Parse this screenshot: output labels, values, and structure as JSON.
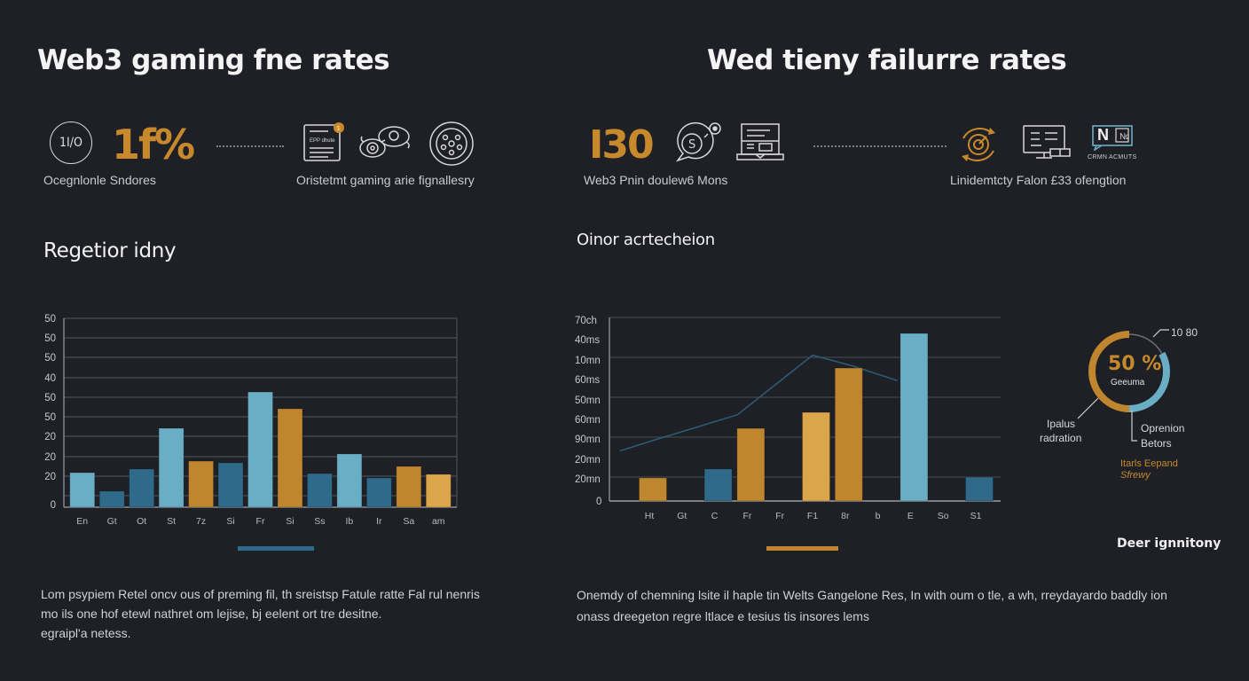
{
  "left": {
    "title": "Web3 gaming fne rates",
    "badge_text": "1I/O",
    "stat_value": "1f%",
    "stat_caption": "Ocegnlonle Sndores",
    "icons_caption": "Oristetmt gaming arie fignallesry",
    "icons": [
      "document-coin-icon",
      "gears-eye-icon",
      "circular-network-icon"
    ],
    "section_title": "Regetior idny",
    "paragraph": [
      "Lom psypiem Retel oncv ous of preming fil, th sreistsp Fatule ratte Fal rul nenris",
      "mo ils one hof etewl nathret om lejise, bj eelent ort tre desitne.",
      "egraipl'a netess."
    ]
  },
  "right": {
    "title": "Wed tieny failurre rates",
    "stat_value": "I30",
    "stat_caption": "Web3 Pnin doulew6 Mons",
    "icons_caption": "Linidemtcty Falon £33 ofengtion",
    "icons": [
      "coin-chat-icon",
      "laptop-book-icon",
      "target-cycle-icon",
      "monitor-icon",
      "news-chat-icon"
    ],
    "news_icon_text": "N",
    "news_icon_caption": "CRMN ACMUTS",
    "section_title": "Oinor acrtecheion",
    "legend_title": "Deer ignnitony",
    "paragraph": [
      "Onemdy of chemning lsite il haple tin Welts Gangelone Res, In with oum o tle, a wh, rreydayardo baddly ion",
      "onass dreegeton regre ltlace e tesius tis insores lems"
    ]
  },
  "colors": {
    "background": "#1e2026",
    "light_blue": "#6aaec6",
    "dark_blue": "#2f6a8a",
    "orange": "#c0862f",
    "light_orange": "#dba54c",
    "line": "#2d5a76",
    "grid": "#4a4d54"
  },
  "chart_data": [
    {
      "type": "bar",
      "title": "Regetior idny",
      "xlabel": "",
      "ylabel": "",
      "ylim": [
        0,
        100
      ],
      "grid": true,
      "y_tick_labels": [
        "50",
        "50",
        "50",
        "40",
        "50",
        "50",
        "20",
        "20",
        "20",
        "0"
      ],
      "categories": [
        "En",
        "Gt",
        "Ot",
        "St",
        "7z",
        "Si",
        "Fr",
        "Si",
        "Ss",
        "Ib",
        "Ir",
        "Sa",
        "am"
      ],
      "values": [
        18.3,
        8.5,
        20.2,
        41.8,
        24.4,
        23.5,
        61.0,
        52.1,
        17.8,
        28.2,
        15.5,
        21.6,
        17.4
      ],
      "bar_colors": [
        "light_blue",
        "dark_blue",
        "dark_blue",
        "light_blue",
        "orange",
        "dark_blue",
        "light_blue",
        "orange",
        "dark_blue",
        "light_blue",
        "dark_blue",
        "orange",
        "light_orange"
      ],
      "indicator_color": "dark_blue"
    },
    {
      "type": "bar",
      "title": "Oinor acrtecheion",
      "xlabel": "",
      "ylabel": "",
      "ylim": [
        0,
        70
      ],
      "grid": true,
      "y_tick_labels": [
        "70ch",
        "40ms",
        "10mn",
        "60ms",
        "50mn",
        "60mn",
        "90mn",
        "20mn",
        "20mn",
        "0"
      ],
      "categories": [
        "Ht",
        "Gt",
        "C",
        "Fr",
        "Fr",
        "F1",
        "8r",
        "b",
        "E",
        "So",
        "S1"
      ],
      "bars": [
        {
          "category_index": 0,
          "value": 8.8,
          "color": "orange"
        },
        {
          "category_index": 2,
          "value": 12.2,
          "color": "dark_blue"
        },
        {
          "category_index": 3,
          "value": 27.7,
          "color": "orange"
        },
        {
          "category_index": 5,
          "value": 33.8,
          "color": "light_orange"
        },
        {
          "category_index": 6,
          "value": 50.7,
          "color": "orange"
        },
        {
          "category_index": 8,
          "value": 63.9,
          "color": "light_blue"
        },
        {
          "category_index": 10,
          "value": 9.1,
          "color": "dark_blue"
        }
      ],
      "line_series": {
        "name": "trend",
        "points": [
          [
            -0.9,
            19.1
          ],
          [
            0.4,
            24.2
          ],
          [
            1.2,
            27.2
          ],
          [
            2.7,
            32.9
          ],
          [
            5.0,
            55.6
          ],
          [
            6.2,
            51.6
          ],
          [
            7.6,
            45.9
          ]
        ]
      },
      "indicator_color": "orange"
    },
    {
      "type": "pie",
      "title": "50 %",
      "center_label": "Geeuma",
      "slices": [
        {
          "label": "Ipalus radration",
          "value": 50,
          "color": "orange"
        },
        {
          "label": "Oprenion Betors",
          "value": 33,
          "color": "light_blue"
        },
        {
          "label": "10 80",
          "value": 17,
          "color": "#6f7278"
        }
      ],
      "center_value": "50 %",
      "annotations": {
        "top_right": "10 80",
        "left": [
          "Ipalus",
          "radration"
        ],
        "right": [
          "Oprenion",
          "Betors"
        ],
        "orange_note": [
          "Itarls Eepand",
          "Sfrewy"
        ]
      }
    }
  ]
}
